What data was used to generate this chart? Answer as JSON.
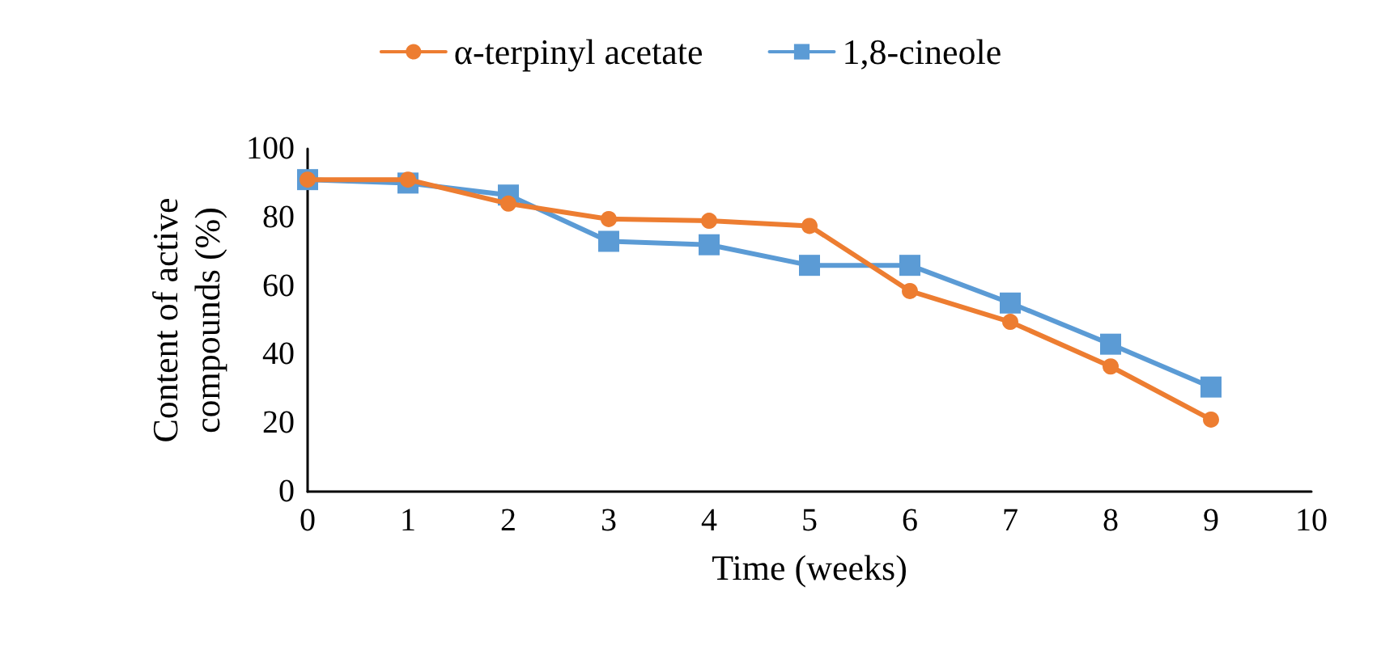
{
  "chart_data": {
    "type": "line",
    "xlabel": "Time (weeks)",
    "ylabel": "Content of active\ncompounds (%)",
    "x": [
      0,
      1,
      2,
      3,
      4,
      5,
      6,
      7,
      8,
      9
    ],
    "series": [
      {
        "name": "α-terpinyl acetate",
        "color": "#ed7d31",
        "marker": "circle",
        "values": [
          91,
          91,
          84,
          79.5,
          79,
          77.5,
          58.5,
          49.5,
          36.5,
          21
        ]
      },
      {
        "name": "1,8-cineole",
        "color": "#5b9bd5",
        "marker": "square",
        "values": [
          91,
          90,
          86.5,
          73,
          72,
          66,
          66,
          55,
          43,
          30.5
        ]
      }
    ],
    "xlim": [
      0,
      10
    ],
    "xticks": [
      0,
      1,
      2,
      3,
      4,
      5,
      6,
      7,
      8,
      9,
      10
    ],
    "ylim": [
      0,
      100
    ],
    "yticks": [
      0,
      20,
      40,
      60,
      80,
      100
    ],
    "grid": false,
    "legend": "top",
    "line_style": "solid"
  }
}
